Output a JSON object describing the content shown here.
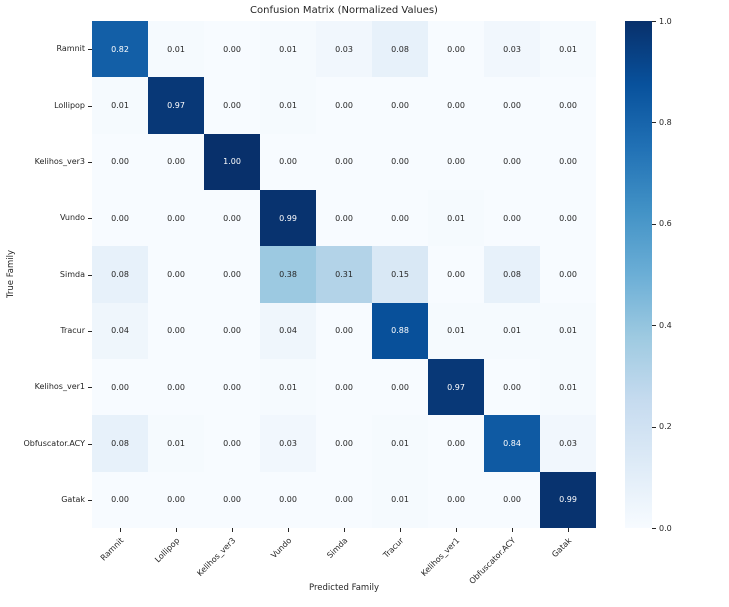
{
  "figure": {
    "background": "#ffffff",
    "text_color": "#262626"
  },
  "chart_data": {
    "type": "heatmap",
    "title": "Confusion Matrix (Normalized Values)",
    "xlabel": "Predicted Family",
    "ylabel": "True Family",
    "categories": [
      "Ramnit",
      "Lollipop",
      "Kelihos_ver3",
      "Vundo",
      "Simda",
      "Tracur",
      "Kelihos_ver1",
      "Obfuscator.ACY",
      "Gatak"
    ],
    "matrix": [
      [
        0.82,
        0.01,
        0.0,
        0.01,
        0.03,
        0.08,
        0.0,
        0.03,
        0.01
      ],
      [
        0.01,
        0.97,
        0.0,
        0.01,
        0.0,
        0.0,
        0.0,
        0.0,
        0.0
      ],
      [
        0.0,
        0.0,
        1.0,
        0.0,
        0.0,
        0.0,
        0.0,
        0.0,
        0.0
      ],
      [
        0.0,
        0.0,
        0.0,
        0.99,
        0.0,
        0.0,
        0.01,
        0.0,
        0.0
      ],
      [
        0.08,
        0.0,
        0.0,
        0.38,
        0.31,
        0.15,
        0.0,
        0.08,
        0.0
      ],
      [
        0.04,
        0.0,
        0.0,
        0.04,
        0.0,
        0.88,
        0.01,
        0.01,
        0.01
      ],
      [
        0.0,
        0.0,
        0.0,
        0.01,
        0.0,
        0.0,
        0.97,
        0.0,
        0.01
      ],
      [
        0.08,
        0.01,
        0.0,
        0.03,
        0.0,
        0.01,
        0.0,
        0.84,
        0.03
      ],
      [
        0.0,
        0.0,
        0.0,
        0.0,
        0.0,
        0.01,
        0.0,
        0.0,
        0.99
      ]
    ],
    "value_decimals": 2,
    "vmin": 0.0,
    "vmax": 1.0,
    "colormap": "Blues",
    "colormap_stops": [
      "#f7fbff",
      "#deebf7",
      "#c6dbef",
      "#9ecae1",
      "#6baed6",
      "#4292c6",
      "#2171b5",
      "#08519c",
      "#08306b"
    ],
    "colorbar_ticks": [
      1.0,
      0.8,
      0.6,
      0.4,
      0.2,
      0.0
    ],
    "annotation": {
      "light_text": "#ffffff",
      "dark_text": "#262626",
      "white_text_threshold": 0.7
    },
    "grid": false,
    "legend_position": "colorbar-right"
  }
}
